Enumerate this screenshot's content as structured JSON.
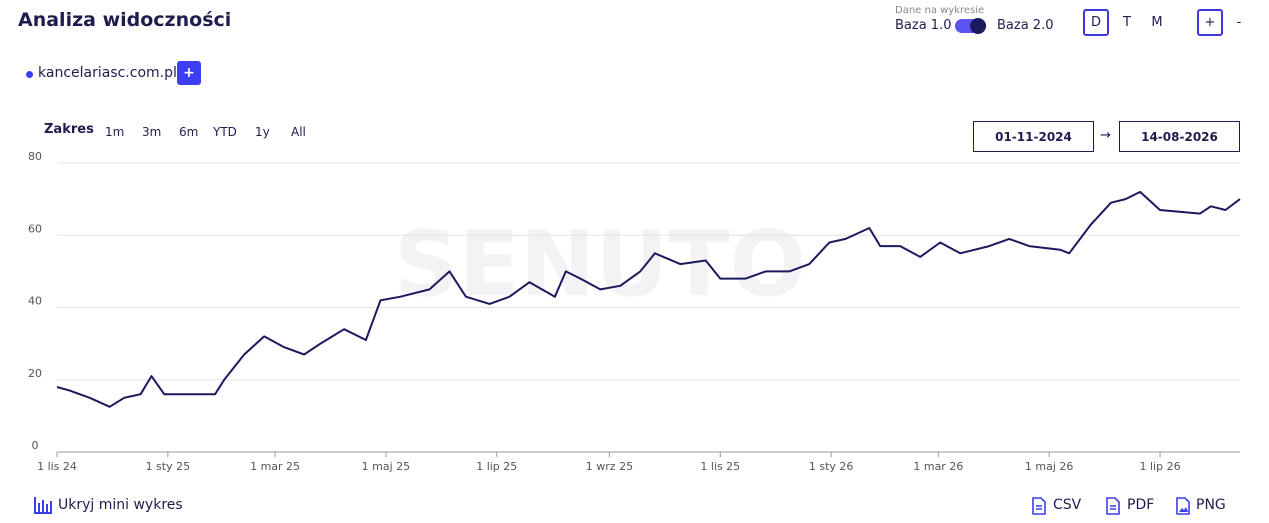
{
  "header": {
    "title": "Analiza widoczności"
  },
  "data_source": {
    "caption": "Dane na wykresie",
    "option_a": "Baza 1.0",
    "option_b": "Baza 2.0"
  },
  "granularity": [
    "D",
    "T",
    "M"
  ],
  "zoom": [
    "+",
    "-"
  ],
  "domain": {
    "name": "kancelariasc.com.pl",
    "add": "+"
  },
  "range": {
    "label": "Zakres",
    "options": [
      "1m",
      "3m",
      "6m",
      "YTD",
      "1y",
      "All"
    ],
    "from": "01-11-2024",
    "arrow": "→",
    "to": "14-08-2026"
  },
  "chart_data": {
    "type": "line",
    "watermark": "SENUTO",
    "color": "#1c1a5e",
    "grid": true,
    "x": [
      "2024-11-01",
      "2024-11-08",
      "2024-11-19",
      "2024-11-30",
      "2024-12-08",
      "2024-12-17",
      "2024-12-23",
      "2024-12-30",
      "2025-01-08",
      "2025-01-27",
      "2025-02-01",
      "2025-02-12",
      "2025-02-23",
      "2025-03-06",
      "2025-03-17",
      "2025-03-26",
      "2025-04-08",
      "2025-04-20",
      "2025-04-28",
      "2025-05-09",
      "2025-05-25",
      "2025-06-05",
      "2025-06-14",
      "2025-06-27",
      "2025-07-08",
      "2025-07-19",
      "2025-08-02",
      "2025-08-08",
      "2025-08-16",
      "2025-08-27",
      "2025-09-07",
      "2025-09-18",
      "2025-09-26",
      "2025-10-10",
      "2025-10-24",
      "2025-11-01",
      "2025-11-15",
      "2025-11-26",
      "2025-12-09",
      "2025-12-20",
      "2025-12-31",
      "2026-01-09",
      "2026-01-22",
      "2026-01-28",
      "2026-02-08",
      "2026-02-19",
      "2026-03-02",
      "2026-03-13",
      "2026-03-29",
      "2026-04-09",
      "2026-04-20",
      "2026-05-07",
      "2026-05-12",
      "2026-05-24",
      "2026-06-04",
      "2026-06-12",
      "2026-06-20",
      "2026-07-01",
      "2026-07-23",
      "2026-07-29",
      "2026-08-06",
      "2026-08-14"
    ],
    "values": [
      18,
      17,
      15,
      12.5,
      15,
      16,
      21,
      16,
      16,
      16,
      20,
      27,
      32,
      29,
      27,
      30,
      34,
      31,
      42,
      43,
      45,
      50,
      43,
      41,
      43,
      47,
      43,
      50,
      48,
      45,
      46,
      50,
      55,
      52,
      53,
      48,
      48,
      50,
      50,
      52,
      58,
      59,
      62,
      57,
      57,
      54,
      58,
      55,
      57,
      59,
      57,
      56,
      55,
      63,
      69,
      70,
      72,
      67,
      66,
      68,
      67,
      70
    ],
    "xlim": [
      "2024-11-01",
      "2026-08-14"
    ],
    "xticks": [
      {
        "value": "2024-11-01",
        "label": "1 lis 24"
      },
      {
        "value": "2025-01-01",
        "label": "1 sty 25"
      },
      {
        "value": "2025-03-01",
        "label": "1 mar 25"
      },
      {
        "value": "2025-05-01",
        "label": "1 maj 25"
      },
      {
        "value": "2025-07-01",
        "label": "1 lip 25"
      },
      {
        "value": "2025-09-01",
        "label": "1 wrz 25"
      },
      {
        "value": "2025-11-01",
        "label": "1 lis 25"
      },
      {
        "value": "2026-01-01",
        "label": "1 sty 26"
      },
      {
        "value": "2026-03-01",
        "label": "1 mar 26"
      },
      {
        "value": "2026-05-01",
        "label": "1 maj 26"
      },
      {
        "value": "2026-07-01",
        "label": "1 lip 26"
      }
    ],
    "ylim": [
      0,
      80
    ],
    "yticks": [
      0,
      20,
      40,
      60,
      80
    ]
  },
  "footer": {
    "toggle": "Ukryj mini wykres",
    "exports": [
      "CSV",
      "PDF",
      "PNG"
    ]
  }
}
